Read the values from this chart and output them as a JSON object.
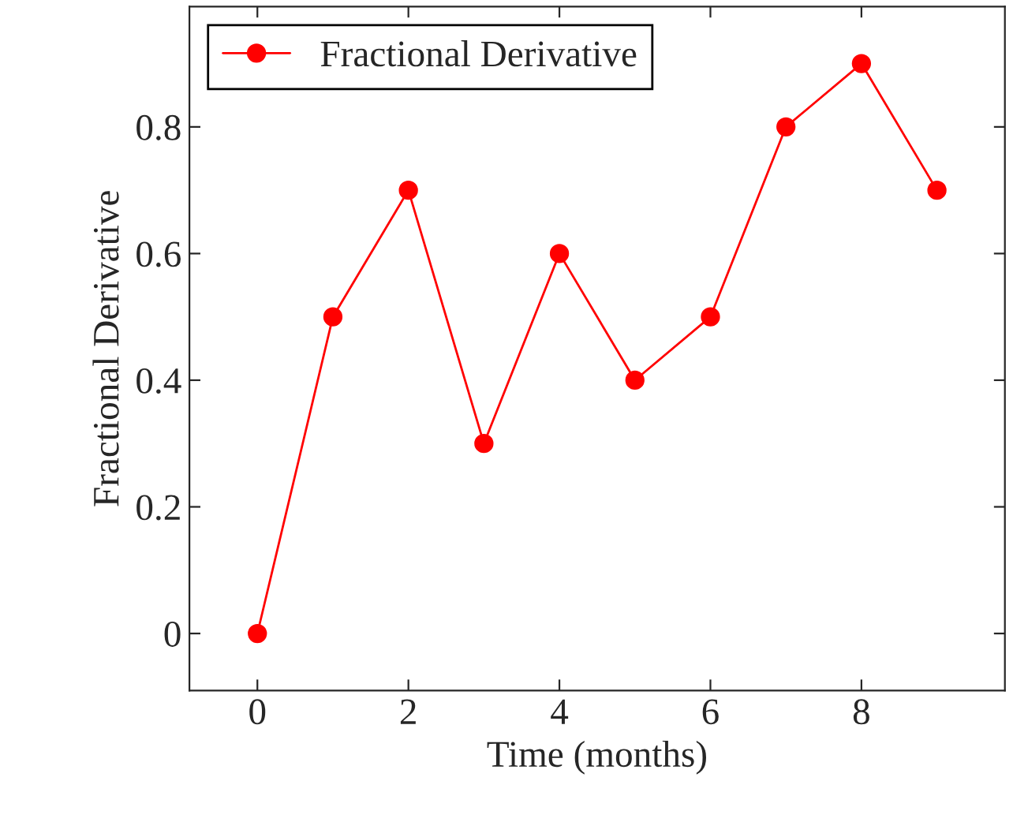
{
  "chart_data": {
    "type": "line",
    "xlabel": "Time (months)",
    "ylabel": "Fractional Derivative",
    "x": [
      0,
      1,
      2,
      3,
      4,
      5,
      6,
      7,
      8,
      9
    ],
    "series": [
      {
        "name": "Fractional Derivative",
        "color": "#ff0000",
        "values": [
          0,
          0.5,
          0.7,
          0.3,
          0.6,
          0.4,
          0.5,
          0.8,
          0.9,
          0.7
        ]
      }
    ],
    "xlim": [
      -0.9,
      9.9
    ],
    "xticks": [
      0,
      2,
      4,
      6,
      8
    ],
    "ylim": [
      -0.09,
      0.99
    ],
    "yticks": [
      0,
      0.2,
      0.4,
      0.6,
      0.8
    ],
    "marker": "circle",
    "line_style": "solid",
    "legend": "top left",
    "grid": false
  }
}
